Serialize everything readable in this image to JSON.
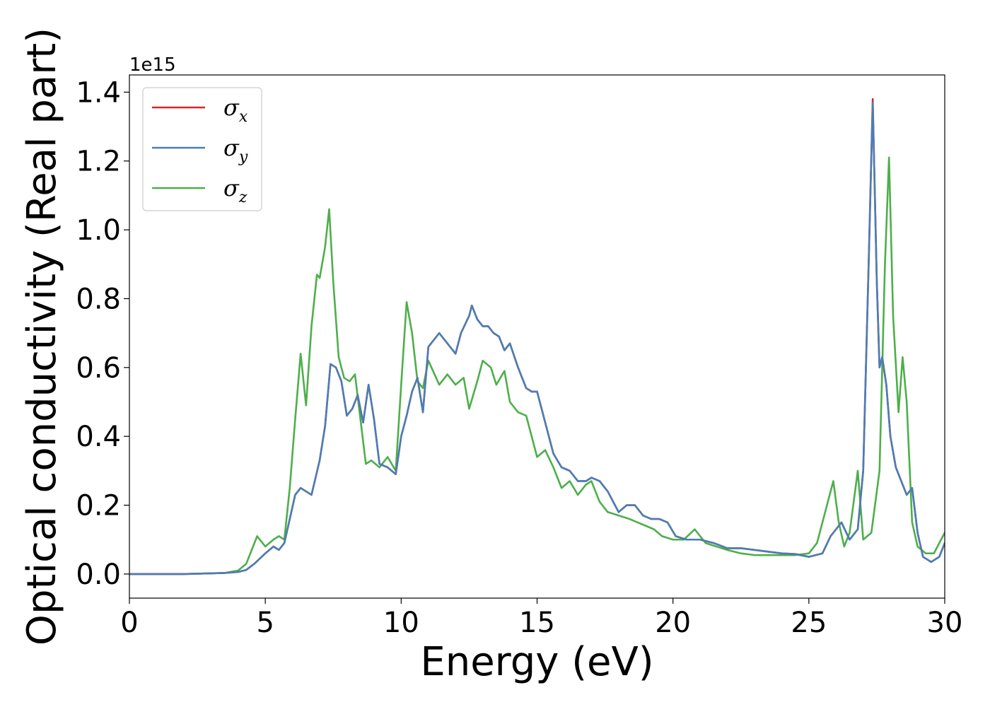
{
  "chart_data": {
    "type": "line",
    "title": "",
    "xlabel": "Energy (eV)",
    "ylabel": "Optical conductivity (Real part)",
    "y_offset_label": "1e15",
    "xlim": [
      0,
      30
    ],
    "ylim": [
      -0.07,
      1.45
    ],
    "x_ticks": [
      0,
      5,
      10,
      15,
      20,
      25,
      30
    ],
    "y_ticks": [
      0.0,
      0.2,
      0.4,
      0.6,
      0.8,
      1.0,
      1.2,
      1.4
    ],
    "x_tick_labels": [
      "0",
      "5",
      "10",
      "15",
      "20",
      "25",
      "30"
    ],
    "y_tick_labels": [
      "0.0",
      "0.2",
      "0.4",
      "0.6",
      "0.8",
      "1.0",
      "1.2",
      "1.4"
    ],
    "grid": false,
    "legend_position": "top-left",
    "series": [
      {
        "name": "σx",
        "legend_base": "σ",
        "legend_sub": "x",
        "color": "#d62728",
        "x": [
          0,
          2,
          3.5,
          4.0,
          4.3,
          4.6,
          5.0,
          5.3,
          5.5,
          5.7,
          5.9,
          6.1,
          6.3,
          6.5,
          6.7,
          7.0,
          7.2,
          7.4,
          7.6,
          7.8,
          8.0,
          8.2,
          8.4,
          8.6,
          8.8,
          9.0,
          9.2,
          9.5,
          9.8,
          10.0,
          10.2,
          10.4,
          10.6,
          10.8,
          11.0,
          11.4,
          11.7,
          12.0,
          12.2,
          12.5,
          12.6,
          12.8,
          13.0,
          13.2,
          13.4,
          13.6,
          13.8,
          14.0,
          14.3,
          14.6,
          14.8,
          15.0,
          15.3,
          15.6,
          15.9,
          16.2,
          16.5,
          16.8,
          17.0,
          17.3,
          17.6,
          18.0,
          18.3,
          18.6,
          18.9,
          19.2,
          19.5,
          19.8,
          20.1,
          20.5,
          21.0,
          21.5,
          22.0,
          22.5,
          23.0,
          23.5,
          24.0,
          24.5,
          25.0,
          25.5,
          25.8,
          26.0,
          26.2,
          26.5,
          26.8,
          27.0,
          27.2,
          27.35,
          27.5,
          27.6,
          27.7,
          27.85,
          28.0,
          28.2,
          28.4,
          28.6,
          28.8,
          29.0,
          29.2,
          29.5,
          29.8,
          30.0
        ],
        "y": [
          0.0,
          0.0,
          0.003,
          0.006,
          0.012,
          0.03,
          0.06,
          0.08,
          0.07,
          0.09,
          0.16,
          0.23,
          0.25,
          0.24,
          0.23,
          0.33,
          0.43,
          0.61,
          0.6,
          0.56,
          0.46,
          0.48,
          0.52,
          0.44,
          0.55,
          0.45,
          0.32,
          0.31,
          0.29,
          0.4,
          0.46,
          0.53,
          0.57,
          0.47,
          0.66,
          0.7,
          0.67,
          0.64,
          0.7,
          0.75,
          0.78,
          0.74,
          0.72,
          0.72,
          0.7,
          0.69,
          0.65,
          0.67,
          0.6,
          0.54,
          0.53,
          0.53,
          0.44,
          0.35,
          0.31,
          0.3,
          0.27,
          0.27,
          0.28,
          0.27,
          0.24,
          0.18,
          0.2,
          0.2,
          0.17,
          0.16,
          0.16,
          0.15,
          0.11,
          0.1,
          0.1,
          0.09,
          0.075,
          0.075,
          0.07,
          0.065,
          0.06,
          0.058,
          0.05,
          0.06,
          0.11,
          0.13,
          0.15,
          0.1,
          0.13,
          0.3,
          0.9,
          1.38,
          0.85,
          0.6,
          0.63,
          0.55,
          0.4,
          0.31,
          0.27,
          0.23,
          0.25,
          0.12,
          0.05,
          0.035,
          0.05,
          0.09
        ]
      },
      {
        "name": "σy",
        "legend_base": "σ",
        "legend_sub": "y",
        "color": "#4a7eb5",
        "x": [
          0,
          2,
          3.5,
          4.0,
          4.3,
          4.6,
          5.0,
          5.3,
          5.5,
          5.7,
          5.9,
          6.1,
          6.3,
          6.5,
          6.7,
          7.0,
          7.2,
          7.4,
          7.6,
          7.8,
          8.0,
          8.2,
          8.4,
          8.6,
          8.8,
          9.0,
          9.2,
          9.5,
          9.8,
          10.0,
          10.2,
          10.4,
          10.6,
          10.8,
          11.0,
          11.4,
          11.7,
          12.0,
          12.2,
          12.5,
          12.6,
          12.8,
          13.0,
          13.2,
          13.4,
          13.6,
          13.8,
          14.0,
          14.3,
          14.6,
          14.8,
          15.0,
          15.3,
          15.6,
          15.9,
          16.2,
          16.5,
          16.8,
          17.0,
          17.3,
          17.6,
          18.0,
          18.3,
          18.6,
          18.9,
          19.2,
          19.5,
          19.8,
          20.1,
          20.5,
          21.0,
          21.5,
          22.0,
          22.5,
          23.0,
          23.5,
          24.0,
          24.5,
          25.0,
          25.5,
          25.8,
          26.0,
          26.2,
          26.5,
          26.8,
          27.0,
          27.2,
          27.35,
          27.5,
          27.6,
          27.7,
          27.85,
          28.0,
          28.2,
          28.4,
          28.6,
          28.8,
          29.0,
          29.2,
          29.5,
          29.8,
          30.0
        ],
        "y": [
          0.0,
          0.0,
          0.003,
          0.006,
          0.012,
          0.03,
          0.06,
          0.08,
          0.07,
          0.09,
          0.16,
          0.23,
          0.25,
          0.24,
          0.23,
          0.33,
          0.43,
          0.61,
          0.6,
          0.56,
          0.46,
          0.48,
          0.52,
          0.44,
          0.55,
          0.45,
          0.32,
          0.31,
          0.29,
          0.4,
          0.46,
          0.53,
          0.57,
          0.47,
          0.66,
          0.7,
          0.67,
          0.64,
          0.7,
          0.75,
          0.78,
          0.74,
          0.72,
          0.72,
          0.7,
          0.69,
          0.65,
          0.67,
          0.6,
          0.54,
          0.53,
          0.53,
          0.44,
          0.35,
          0.31,
          0.3,
          0.27,
          0.27,
          0.28,
          0.27,
          0.24,
          0.18,
          0.2,
          0.2,
          0.17,
          0.16,
          0.16,
          0.15,
          0.11,
          0.1,
          0.1,
          0.09,
          0.075,
          0.075,
          0.07,
          0.065,
          0.06,
          0.058,
          0.05,
          0.06,
          0.11,
          0.13,
          0.15,
          0.1,
          0.13,
          0.3,
          0.9,
          1.37,
          0.85,
          0.6,
          0.63,
          0.55,
          0.4,
          0.31,
          0.27,
          0.23,
          0.25,
          0.12,
          0.05,
          0.035,
          0.05,
          0.09
        ]
      },
      {
        "name": "σz",
        "legend_base": "σ",
        "legend_sub": "z",
        "color": "#4daf4a",
        "x": [
          0,
          2,
          3.5,
          4.0,
          4.3,
          4.5,
          4.7,
          5.0,
          5.3,
          5.5,
          5.7,
          5.9,
          6.1,
          6.3,
          6.5,
          6.7,
          6.9,
          7.0,
          7.2,
          7.35,
          7.5,
          7.7,
          7.9,
          8.1,
          8.3,
          8.5,
          8.7,
          8.9,
          9.2,
          9.5,
          9.8,
          10.0,
          10.2,
          10.4,
          10.6,
          10.8,
          11.0,
          11.4,
          11.7,
          12.0,
          12.3,
          12.5,
          12.8,
          13.0,
          13.3,
          13.5,
          13.8,
          14.0,
          14.3,
          14.6,
          15.0,
          15.3,
          15.6,
          15.9,
          16.2,
          16.5,
          16.8,
          17.0,
          17.3,
          17.6,
          18.0,
          18.4,
          18.7,
          19.0,
          19.3,
          19.6,
          20.0,
          20.4,
          20.8,
          21.2,
          21.6,
          22.0,
          22.5,
          23.0,
          23.5,
          24.0,
          24.5,
          25.0,
          25.3,
          25.6,
          25.9,
          26.1,
          26.3,
          26.5,
          26.8,
          27.0,
          27.3,
          27.6,
          27.8,
          27.95,
          28.1,
          28.3,
          28.45,
          28.6,
          28.8,
          29.0,
          29.3,
          29.6,
          30.0
        ],
        "y": [
          0.0,
          0.0,
          0.003,
          0.01,
          0.03,
          0.07,
          0.11,
          0.08,
          0.1,
          0.11,
          0.1,
          0.25,
          0.45,
          0.64,
          0.49,
          0.72,
          0.87,
          0.86,
          0.95,
          1.06,
          0.85,
          0.63,
          0.57,
          0.56,
          0.58,
          0.45,
          0.32,
          0.33,
          0.31,
          0.34,
          0.3,
          0.55,
          0.79,
          0.7,
          0.56,
          0.54,
          0.62,
          0.55,
          0.58,
          0.55,
          0.57,
          0.48,
          0.56,
          0.62,
          0.6,
          0.55,
          0.59,
          0.5,
          0.47,
          0.46,
          0.34,
          0.36,
          0.31,
          0.25,
          0.27,
          0.23,
          0.26,
          0.27,
          0.21,
          0.18,
          0.17,
          0.16,
          0.15,
          0.14,
          0.13,
          0.11,
          0.1,
          0.1,
          0.13,
          0.09,
          0.08,
          0.07,
          0.06,
          0.055,
          0.055,
          0.055,
          0.055,
          0.06,
          0.09,
          0.18,
          0.27,
          0.15,
          0.08,
          0.12,
          0.3,
          0.1,
          0.12,
          0.3,
          0.9,
          1.21,
          0.75,
          0.47,
          0.63,
          0.5,
          0.15,
          0.08,
          0.06,
          0.06,
          0.12
        ]
      }
    ]
  }
}
